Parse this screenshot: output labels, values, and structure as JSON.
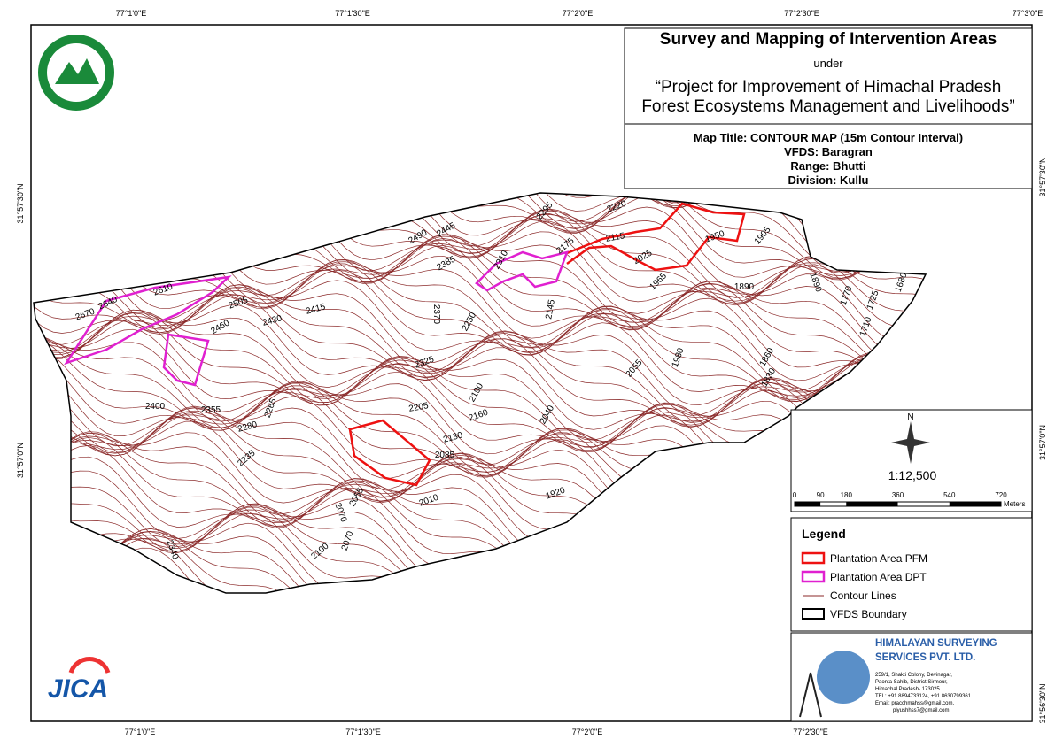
{
  "header": {
    "title": "Survey and Mapping of Intervention Areas",
    "under": "under",
    "project": [
      "“Project for Improvement of Himachal Pradesh",
      "Forest Ecosystems Management and Livelihoods”"
    ]
  },
  "map_info": [
    "Map Title: CONTOUR MAP (15m Contour Interval)",
    "VFDS: Baragran",
    "Range: Bhutti",
    "Division: Kullu"
  ],
  "graticule": {
    "top": [
      "77°1'0\"E",
      "77°1'30\"E",
      "77°2'0\"E",
      "77°2'30\"E",
      "77°3'0\"E"
    ],
    "bottom": [
      "77°1'0\"E",
      "77°1'30\"E",
      "77°2'0\"E",
      "77°2'30\"E"
    ],
    "left": [
      "31°57'30\"N",
      "31°57'0\"N"
    ],
    "right": [
      "31°57'30\"N",
      "31°57'0\"N",
      "31°56'30\"N"
    ]
  },
  "north": "N",
  "scale": "1:12,500",
  "scale_bar": {
    "ticks": [
      0,
      90,
      180,
      360,
      540,
      720
    ],
    "unit": "Meters"
  },
  "legend": {
    "title": "Legend",
    "items": [
      "Plantation Area PFM",
      "Plantation Area DPT",
      "Contour Lines",
      "VFDS Boundary"
    ]
  },
  "company": {
    "name": [
      "HIMALAYAN SURVEYING",
      "SERVICES PVT. LTD."
    ],
    "address": [
      "259/1, Shakti Colony, Devinagar,",
      "Paonta Sahib, District Sirmour,",
      "Himachal Pradesh- 173025",
      "TEL: +91 8894733124, +91 8630799361",
      "Email: pracchmahss@gmail.com,",
      "piyushhss7@gmail.com"
    ]
  },
  "logo": "JICA",
  "contour_labels": [
    "2670",
    "2640",
    "2610",
    "2505",
    "2460",
    "2430",
    "2415",
    "2490",
    "2445",
    "2385",
    "2370",
    "2310",
    "2295",
    "2220",
    "2175",
    "2115",
    "2025",
    "1950",
    "1905",
    "1965",
    "1890",
    "1890",
    "1770",
    "1725",
    "1680",
    "1710",
    "1860",
    "1830",
    "1980",
    "2055",
    "2145",
    "2250",
    "2325",
    "2190",
    "2205",
    "2160",
    "2130",
    "2085",
    "2040",
    "1920",
    "2010",
    "2400",
    "2355",
    "2265",
    "2280",
    "2235",
    "2070",
    "2055",
    "2070",
    "2100",
    "2340"
  ]
}
